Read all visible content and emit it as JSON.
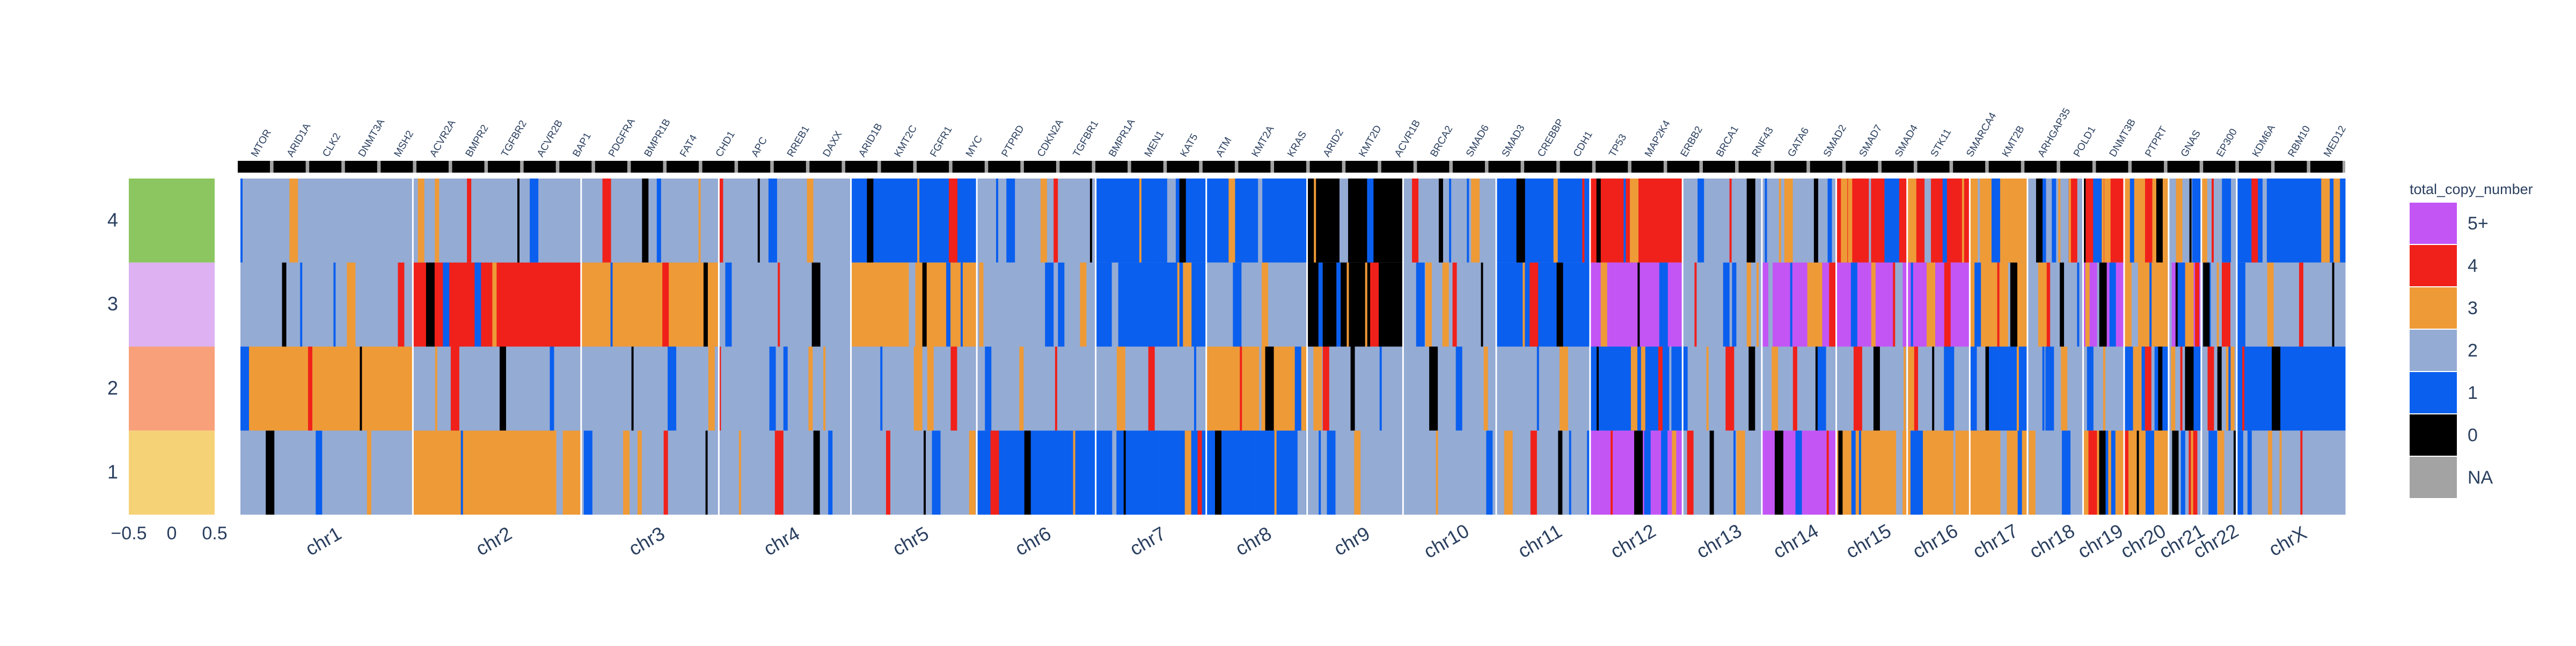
{
  "chart_data": {
    "type": "heatmap",
    "title": "",
    "legend": {
      "title": "total_copy_number",
      "placement": "right",
      "entries": [
        {
          "label": "5+",
          "color": "#C355F5"
        },
        {
          "label": "4",
          "color": "#F0211A"
        },
        {
          "label": "3",
          "color": "#EE9A37"
        },
        {
          "label": "2",
          "color": "#94ABD4"
        },
        {
          "label": "1",
          "color": "#0A5FEF"
        },
        {
          "label": "0",
          "color": "#000000"
        },
        {
          "label": "NA",
          "color": "#A3A3A3"
        }
      ]
    },
    "clinical_panel": {
      "x_ticks": [
        "−0.5",
        "0",
        "0.5"
      ],
      "rows": [
        {
          "label": "4",
          "color": "#8BC660"
        },
        {
          "label": "3",
          "color": "#DDB1F2"
        },
        {
          "label": "2",
          "color": "#F8A07A"
        },
        {
          "label": "1",
          "color": "#F6D277"
        }
      ]
    },
    "samples": [
      "4",
      "3",
      "2",
      "1"
    ],
    "chromosomes": [
      {
        "name": "chr1",
        "weight": 248
      },
      {
        "name": "chr2",
        "weight": 242
      },
      {
        "name": "chr3",
        "weight": 198
      },
      {
        "name": "chr4",
        "weight": 190
      },
      {
        "name": "chr5",
        "weight": 181
      },
      {
        "name": "chr6",
        "weight": 171
      },
      {
        "name": "chr7",
        "weight": 159
      },
      {
        "name": "chr8",
        "weight": 145
      },
      {
        "name": "chr9",
        "weight": 138
      },
      {
        "name": "chr10",
        "weight": 134
      },
      {
        "name": "chr11",
        "weight": 135
      },
      {
        "name": "chr12",
        "weight": 133
      },
      {
        "name": "chr13",
        "weight": 114
      },
      {
        "name": "chr14",
        "weight": 107
      },
      {
        "name": "chr15",
        "weight": 102
      },
      {
        "name": "chr16",
        "weight": 90
      },
      {
        "name": "chr17",
        "weight": 83
      },
      {
        "name": "chr18",
        "weight": 80
      },
      {
        "name": "chr19",
        "weight": 59
      },
      {
        "name": "chr20",
        "weight": 64
      },
      {
        "name": "chr21",
        "weight": 47
      },
      {
        "name": "chr22",
        "weight": 51
      },
      {
        "name": "chrX",
        "weight": 156
      }
    ],
    "genes": [
      "MTOR",
      "ARID1A",
      "CLK2",
      "DNMT3A",
      "MSH2",
      "ACVR2A",
      "BMPR2",
      "TGFBR2",
      "ACVR2B",
      "BAP1",
      "PDGFRA",
      "BMPR1B",
      "FAT4",
      "CHD1",
      "APC",
      "RREB1",
      "DAXX",
      "ARID1B",
      "KMT2C",
      "FGFR1",
      "MYC",
      "PTPRD",
      "CDKN2A",
      "TGFBR1",
      "BMPR1A",
      "MEN1",
      "KAT5",
      "ATM",
      "KMT2A",
      "KRAS",
      "ARID2",
      "KMT2D",
      "ACVR1B",
      "BRCA2",
      "SMAD6",
      "SMAD3",
      "CREBBP",
      "CDH1",
      "TP53",
      "MAP2K4",
      "ERBB2",
      "BRCA1",
      "RNF43",
      "GATA6",
      "SMAD2",
      "SMAD7",
      "SMAD4",
      "STK11",
      "SMARCA4",
      "KMT2B",
      "ARHGAP35",
      "POLD1",
      "DNMT3B",
      "PTPRT",
      "GNAS",
      "EP300",
      "KDM6A",
      "RBM10",
      "MED12"
    ],
    "values_by_chromosome": {
      "chr1": {
        "4": 2,
        "3": 2,
        "2": 3,
        "1": 2
      },
      "chr2": {
        "4": 2,
        "3": 4,
        "2": 2,
        "1": 3
      },
      "chr3": {
        "4": 2,
        "3": 3,
        "2": 2,
        "1": 2
      },
      "chr4": {
        "4": 2,
        "3": 2,
        "2": 2,
        "1": 2
      },
      "chr5": {
        "4": 1,
        "3": 3,
        "2": 2,
        "1": 2
      },
      "chr6": {
        "4": 2,
        "3": 2,
        "2": 2,
        "1": 1
      },
      "chr7": {
        "4": 1,
        "3": 1,
        "2": 2,
        "1": 1
      },
      "chr8": {
        "4": 1,
        "3": 2,
        "2": 3,
        "1": 1
      },
      "chr9": {
        "4": 0,
        "3": 0,
        "2": 2,
        "1": 2
      },
      "chr10": {
        "4": 2,
        "3": 2,
        "2": 2,
        "1": 2
      },
      "chr11": {
        "4": 1,
        "3": 1,
        "2": 2,
        "1": 2
      },
      "chr12": {
        "4": 4,
        "3": 5,
        "2": 1,
        "1": 5
      },
      "chr13": {
        "4": 2,
        "3": 2,
        "2": 2,
        "1": 2
      },
      "chr14": {
        "4": 2,
        "3": 5,
        "2": 2,
        "1": 5
      },
      "chr15": {
        "4": 4,
        "3": 5,
        "2": 2,
        "1": 3
      },
      "chr16": {
        "4": 4,
        "3": 5,
        "2": 2,
        "1": 3
      },
      "chr17": {
        "4": 3,
        "3": 3,
        "2": 1,
        "1": 3
      },
      "chr18": {
        "4": 2,
        "3": 2,
        "2": 2,
        "1": 2
      },
      "chr19": {
        "4": 4,
        "3": 5,
        "2": 2,
        "1": 3
      },
      "chr20": {
        "4": 3,
        "3": 3,
        "2": 1,
        "1": 3
      },
      "chr21": {
        "4": 2,
        "3": 5,
        "2": 2,
        "1": 2
      },
      "chr22": {
        "4": 2,
        "3": 2,
        "2": 2,
        "1": 2
      },
      "chrX": {
        "4": 1,
        "3": 2,
        "2": 1,
        "1": 2
      }
    }
  }
}
